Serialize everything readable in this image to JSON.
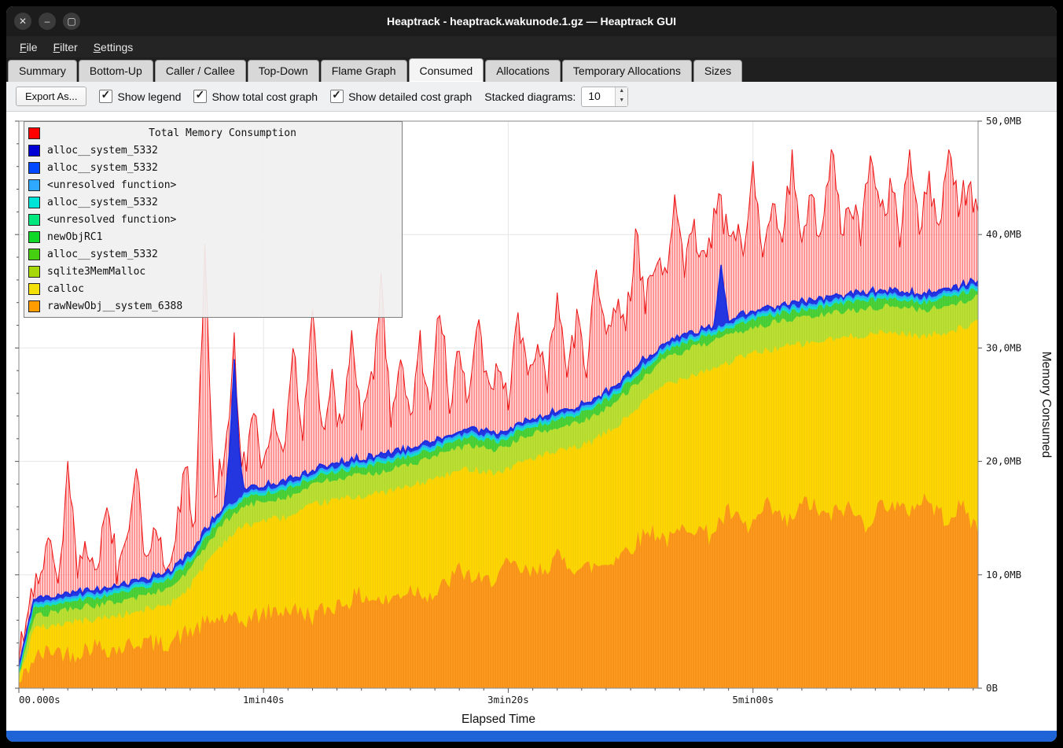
{
  "window": {
    "title": "Heaptrack - heaptrack.wakunode.1.gz — Heaptrack GUI",
    "controls": {
      "close": "✕",
      "minimize": "–",
      "maximize": "▢"
    }
  },
  "menu": {
    "items": [
      "File",
      "Filter",
      "Settings"
    ]
  },
  "tabs": {
    "items": [
      "Summary",
      "Bottom-Up",
      "Caller / Callee",
      "Top-Down",
      "Flame Graph",
      "Consumed",
      "Allocations",
      "Temporary Allocations",
      "Sizes"
    ],
    "active": "Consumed"
  },
  "toolbar": {
    "export_label": "Export As...",
    "checkboxes": [
      {
        "label": "Show legend",
        "checked": true
      },
      {
        "label": "Show total cost graph",
        "checked": true
      },
      {
        "label": "Show detailed cost graph",
        "checked": true
      }
    ],
    "stacked_label": "Stacked diagrams:",
    "stacked_value": "10"
  },
  "legend": {
    "title": "Total Memory Consumption",
    "title_color": "#ff0000",
    "entries": [
      {
        "color": "#0000d4",
        "label": "alloc__system_5332"
      },
      {
        "color": "#0048ff",
        "label": "alloc__system_5332"
      },
      {
        "color": "#2fa8ff",
        "label": "<unresolved function>"
      },
      {
        "color": "#00e4d8",
        "label": "alloc__system_5332"
      },
      {
        "color": "#00e87e",
        "label": "<unresolved function>"
      },
      {
        "color": "#0fd829",
        "label": "newObjRC1"
      },
      {
        "color": "#46cf10",
        "label": "alloc__system_5332"
      },
      {
        "color": "#a6d80a",
        "label": "sqlite3MemMalloc"
      },
      {
        "color": "#f4e009",
        "label": "calloc"
      },
      {
        "color": "#ff9d00",
        "label": "rawNewObj__system_6388"
      }
    ]
  },
  "chart_data": {
    "type": "area",
    "title": "Total Memory Consumption",
    "xlabel": "Elapsed Time",
    "ylabel": "Memory Consumed",
    "x_max_s": 392,
    "y_max_mb": 50,
    "x_ticks": [
      {
        "t": 0,
        "label": "00.000s",
        "anchor": "start"
      },
      {
        "t": 100,
        "label": "1min40s",
        "anchor": "middle"
      },
      {
        "t": 200,
        "label": "3min20s",
        "anchor": "middle"
      },
      {
        "t": 300,
        "label": "5min00s",
        "anchor": "middle"
      }
    ],
    "y_ticks": [
      {
        "v": 0,
        "label": "0B"
      },
      {
        "v": 10,
        "label": "10,0MB"
      },
      {
        "v": 20,
        "label": "20,0MB"
      },
      {
        "v": 30,
        "label": "30,0MB"
      },
      {
        "v": 40,
        "label": "40,0MB"
      },
      {
        "v": 50,
        "label": "50,0MB"
      }
    ],
    "noise_seed": 42,
    "layers": {
      "orange": {
        "name": "rawNewObj__system_6388",
        "color": "#ff9b21",
        "line": "#ef8a0e",
        "noise": 0.9,
        "top_mb": [
          [
            0,
            0.3
          ],
          [
            6,
            2.6
          ],
          [
            14,
            3.4
          ],
          [
            22,
            3.0
          ],
          [
            30,
            3.8
          ],
          [
            40,
            3.4
          ],
          [
            50,
            4.2
          ],
          [
            58,
            3.8
          ],
          [
            66,
            4.6
          ],
          [
            74,
            5.4
          ],
          [
            82,
            6.2
          ],
          [
            90,
            5.8
          ],
          [
            100,
            6.6
          ],
          [
            110,
            7.0
          ],
          [
            120,
            6.4
          ],
          [
            130,
            7.4
          ],
          [
            140,
            8.2
          ],
          [
            150,
            7.6
          ],
          [
            160,
            8.8
          ],
          [
            170,
            8.2
          ],
          [
            180,
            10.4
          ],
          [
            190,
            9.2
          ],
          [
            200,
            10.8
          ],
          [
            210,
            10.0
          ],
          [
            220,
            11.5
          ],
          [
            230,
            10.5
          ],
          [
            240,
            11.0
          ],
          [
            250,
            12.5
          ],
          [
            258,
            14.0
          ],
          [
            266,
            13.0
          ],
          [
            274,
            14.5
          ],
          [
            282,
            13.5
          ],
          [
            290,
            15.5
          ],
          [
            298,
            14.0
          ],
          [
            306,
            16.0
          ],
          [
            314,
            14.5
          ],
          [
            322,
            16.5
          ],
          [
            330,
            15.0
          ],
          [
            338,
            16.0
          ],
          [
            346,
            14.5
          ],
          [
            354,
            16.5
          ],
          [
            362,
            15.5
          ],
          [
            370,
            16.8
          ],
          [
            378,
            15.0
          ],
          [
            386,
            16.0
          ],
          [
            392,
            13.8
          ]
        ]
      },
      "yellow": {
        "name": "calloc",
        "color": "#ffd800",
        "line": "#f0c90a",
        "noise": 0.35,
        "top_mb": [
          [
            0,
            0.8
          ],
          [
            6,
            5.2
          ],
          [
            20,
            5.8
          ],
          [
            35,
            6.2
          ],
          [
            50,
            6.8
          ],
          [
            62,
            7.5
          ],
          [
            70,
            9.0
          ],
          [
            78,
            11.5
          ],
          [
            85,
            13.2
          ],
          [
            92,
            14.3
          ],
          [
            100,
            14.8
          ],
          [
            112,
            15.2
          ],
          [
            122,
            16.3
          ],
          [
            135,
            16.8
          ],
          [
            148,
            17.2
          ],
          [
            160,
            17.8
          ],
          [
            172,
            18.6
          ],
          [
            184,
            19.4
          ],
          [
            196,
            19.0
          ],
          [
            208,
            20.2
          ],
          [
            220,
            20.8
          ],
          [
            232,
            21.5
          ],
          [
            244,
            23.0
          ],
          [
            254,
            25.0
          ],
          [
            264,
            26.8
          ],
          [
            274,
            27.6
          ],
          [
            286,
            28.4
          ],
          [
            298,
            29.4
          ],
          [
            310,
            30.0
          ],
          [
            322,
            30.4
          ],
          [
            334,
            30.8
          ],
          [
            346,
            31.2
          ],
          [
            358,
            31.4
          ],
          [
            370,
            31.0
          ],
          [
            382,
            31.6
          ],
          [
            392,
            32.2
          ]
        ]
      },
      "yellowgreen": {
        "name": "sqlite3MemMalloc",
        "color": "#bfe23a",
        "line": "#a9d120",
        "noise": 0.3,
        "top_mb": [
          [
            0,
            1.0
          ],
          [
            6,
            6.3
          ],
          [
            20,
            7.0
          ],
          [
            35,
            7.4
          ],
          [
            50,
            8.1
          ],
          [
            62,
            8.9
          ],
          [
            70,
            10.5
          ],
          [
            78,
            13.0
          ],
          [
            85,
            14.8
          ],
          [
            92,
            16.0
          ],
          [
            100,
            16.5
          ],
          [
            112,
            17.0
          ],
          [
            122,
            18.1
          ],
          [
            135,
            18.6
          ],
          [
            148,
            19.1
          ],
          [
            160,
            19.7
          ],
          [
            172,
            20.6
          ],
          [
            184,
            21.4
          ],
          [
            196,
            21.0
          ],
          [
            208,
            22.3
          ],
          [
            220,
            22.9
          ],
          [
            232,
            23.7
          ],
          [
            244,
            25.2
          ],
          [
            254,
            27.2
          ],
          [
            264,
            29.0
          ],
          [
            274,
            29.9
          ],
          [
            286,
            30.7
          ],
          [
            298,
            31.7
          ],
          [
            310,
            32.3
          ],
          [
            322,
            32.7
          ],
          [
            334,
            33.1
          ],
          [
            346,
            33.5
          ],
          [
            358,
            33.7
          ],
          [
            370,
            33.3
          ],
          [
            382,
            33.9
          ],
          [
            392,
            34.5
          ]
        ]
      },
      "green": {
        "name": "newObjRC1",
        "color": "#4fd43c",
        "line": "#3fc32c",
        "noise": 0.25,
        "top_mb": [
          [
            0,
            1.2
          ],
          [
            6,
            7.0
          ],
          [
            20,
            7.7
          ],
          [
            35,
            8.1
          ],
          [
            50,
            8.8
          ],
          [
            62,
            9.6
          ],
          [
            70,
            11.2
          ],
          [
            78,
            13.7
          ],
          [
            85,
            15.5
          ],
          [
            92,
            16.7
          ],
          [
            100,
            17.2
          ],
          [
            112,
            17.7
          ],
          [
            122,
            18.8
          ],
          [
            135,
            19.3
          ],
          [
            148,
            19.8
          ],
          [
            160,
            20.4
          ],
          [
            172,
            21.3
          ],
          [
            184,
            22.1
          ],
          [
            196,
            21.7
          ],
          [
            208,
            23.0
          ],
          [
            220,
            23.6
          ],
          [
            232,
            24.4
          ],
          [
            244,
            25.9
          ],
          [
            254,
            27.9
          ],
          [
            264,
            29.7
          ],
          [
            274,
            30.6
          ],
          [
            286,
            31.4
          ],
          [
            298,
            32.4
          ],
          [
            310,
            33.0
          ],
          [
            322,
            33.4
          ],
          [
            334,
            33.8
          ],
          [
            346,
            34.2
          ],
          [
            358,
            34.4
          ],
          [
            370,
            34.0
          ],
          [
            382,
            34.6
          ],
          [
            392,
            35.2
          ]
        ]
      },
      "cyan_band_mb": 0.25,
      "cyan_color": "#14dcc8",
      "lightblue_band_mb": 0.2,
      "lightblue_color": "#2fa8ff",
      "blue_band_mb": 0.3,
      "blue_band_color": "#2436df",
      "blue_line": {
        "name": "alloc__system_5332",
        "color": "#1b2ae0",
        "noise": 0.2,
        "extra_mb": [
          [
            0,
            0
          ],
          [
            84,
            0
          ],
          [
            86,
            4
          ],
          [
            88,
            12.5
          ],
          [
            90,
            4
          ],
          [
            92,
            0
          ],
          [
            284,
            0
          ],
          [
            287,
            5
          ],
          [
            290,
            0
          ],
          [
            392,
            0
          ]
        ]
      },
      "total": {
        "name": "Total Memory Consumption",
        "stroke": "#ea1212",
        "noise": 1.4,
        "delta_mb": [
          [
            0,
            0.3
          ],
          [
            4,
            2
          ],
          [
            8,
            1
          ],
          [
            12,
            5
          ],
          [
            16,
            1
          ],
          [
            20,
            11
          ],
          [
            24,
            1
          ],
          [
            28,
            4
          ],
          [
            32,
            1
          ],
          [
            36,
            8
          ],
          [
            40,
            1.5
          ],
          [
            44,
            3
          ],
          [
            48,
            11
          ],
          [
            52,
            1
          ],
          [
            56,
            5
          ],
          [
            60,
            1
          ],
          [
            64,
            3
          ],
          [
            68,
            8
          ],
          [
            72,
            2
          ],
          [
            76,
            24
          ],
          [
            80,
            2
          ],
          [
            84,
            5
          ],
          [
            88,
            1
          ],
          [
            92,
            2
          ],
          [
            96,
            6
          ],
          [
            100,
            1.5
          ],
          [
            104,
            7
          ],
          [
            108,
            2
          ],
          [
            112,
            12
          ],
          [
            116,
            2
          ],
          [
            120,
            15
          ],
          [
            124,
            2.5
          ],
          [
            128,
            7
          ],
          [
            132,
            2
          ],
          [
            136,
            11
          ],
          [
            140,
            3
          ],
          [
            144,
            6
          ],
          [
            148,
            15
          ],
          [
            152,
            3
          ],
          [
            156,
            7
          ],
          [
            160,
            2.5
          ],
          [
            164,
            9
          ],
          [
            168,
            2.5
          ],
          [
            172,
            12
          ],
          [
            176,
            3
          ],
          [
            180,
            7
          ],
          [
            184,
            2.5
          ],
          [
            188,
            9
          ],
          [
            192,
            3.5
          ],
          [
            196,
            6
          ],
          [
            200,
            3
          ],
          [
            204,
            10
          ],
          [
            208,
            3.5
          ],
          [
            212,
            7
          ],
          [
            216,
            3
          ],
          [
            220,
            11
          ],
          [
            224,
            4
          ],
          [
            228,
            7.5
          ],
          [
            232,
            3.5
          ],
          [
            236,
            11
          ],
          [
            240,
            4.5
          ],
          [
            244,
            7
          ],
          [
            248,
            3.5
          ],
          [
            252,
            12
          ],
          [
            256,
            5
          ],
          [
            260,
            8
          ],
          [
            264,
            5.5
          ],
          [
            268,
            12
          ],
          [
            272,
            6
          ],
          [
            276,
            9
          ],
          [
            280,
            6.5
          ],
          [
            284,
            9
          ],
          [
            288,
            6
          ],
          [
            292,
            9
          ],
          [
            296,
            5
          ],
          [
            300,
            13
          ],
          [
            304,
            5.5
          ],
          [
            308,
            9.5
          ],
          [
            312,
            6
          ],
          [
            316,
            12.5
          ],
          [
            320,
            5.5
          ],
          [
            324,
            9
          ],
          [
            328,
            5
          ],
          [
            332,
            13
          ],
          [
            336,
            6
          ],
          [
            340,
            8
          ],
          [
            344,
            5
          ],
          [
            348,
            12
          ],
          [
            352,
            6.5
          ],
          [
            356,
            9
          ],
          [
            360,
            5
          ],
          [
            364,
            12.5
          ],
          [
            368,
            6.5
          ],
          [
            372,
            10
          ],
          [
            376,
            5.5
          ],
          [
            380,
            13
          ],
          [
            384,
            7
          ],
          [
            388,
            9
          ],
          [
            392,
            5.5
          ]
        ]
      }
    }
  }
}
